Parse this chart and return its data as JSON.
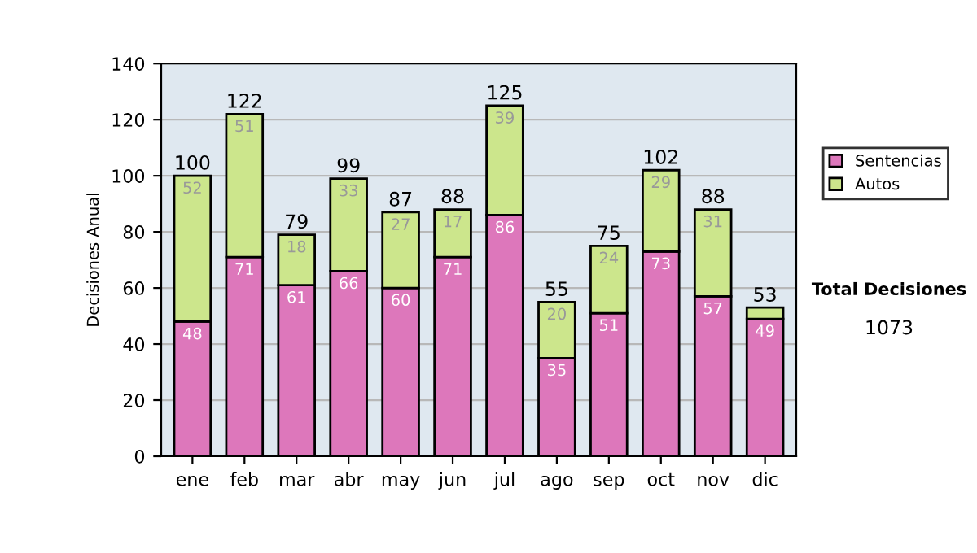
{
  "chart_data": {
    "type": "bar",
    "stacked": true,
    "ylabel": "Decisiones Anual",
    "categories": [
      "ene",
      "feb",
      "mar",
      "abr",
      "may",
      "jun",
      "jul",
      "ago",
      "sep",
      "oct",
      "nov",
      "dic"
    ],
    "series": [
      {
        "name": "Sentencias",
        "color": "#dd77bb",
        "values": [
          48,
          71,
          61,
          66,
          60,
          71,
          86,
          35,
          51,
          73,
          57,
          49
        ],
        "value_labels": [
          "48",
          "71",
          "61",
          "66",
          "60",
          "71",
          "86",
          "35",
          "51",
          "73",
          "57",
          "49"
        ]
      },
      {
        "name": "Autos",
        "color": "#cce68c",
        "values": [
          52,
          51,
          18,
          33,
          27,
          17,
          39,
          20,
          24,
          29,
          31,
          4
        ],
        "value_labels": [
          "52",
          "51",
          "18",
          "33",
          "27",
          "17",
          "39",
          "20",
          "24",
          "29",
          "31",
          null
        ]
      }
    ],
    "totals": [
      "100",
      "122",
      "79",
      "99",
      "87",
      "88",
      "125",
      "55",
      "75",
      "102",
      "88",
      "53"
    ],
    "ylim": [
      0,
      140
    ],
    "yticks": [
      0,
      20,
      40,
      60,
      80,
      100,
      120,
      140
    ],
    "grid": "y",
    "legend": "right",
    "annotations": [
      "Total Decisiones",
      "1073"
    ]
  }
}
